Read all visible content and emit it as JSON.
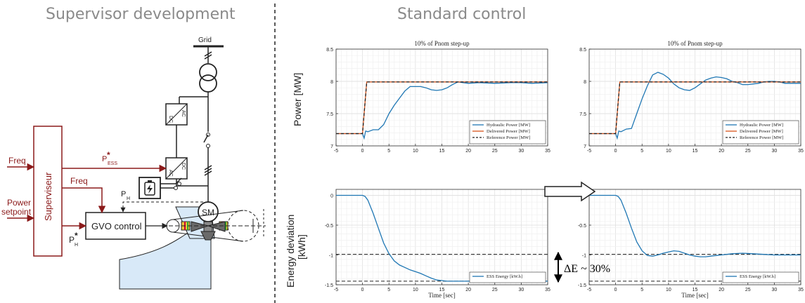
{
  "headings": {
    "left": "Supervisor development",
    "right": "Standard control"
  },
  "diagram": {
    "grid": "Grid",
    "freq": "Freq",
    "freq2": "Freq",
    "power_setpoint_1": "Power",
    "power_setpoint_2": "setpoint",
    "supervisor": "Superviseur",
    "gvo_control": "GVO control",
    "sm": "SM",
    "p_ess": "P",
    "p_ess_sub": "ESS",
    "p_h": "P",
    "p_h_sub": "H",
    "p_h_star": "P",
    "p_h_star_sub": "H",
    "star": "*",
    "ac": "AC",
    "dc": "DC",
    "colors": {
      "signal": "#8b1a1a",
      "water": "#d8e9f8"
    }
  },
  "y_labels": {
    "top": "Power [MW]",
    "bottom_1": "Energy deviation",
    "bottom_2": "[kWh]"
  },
  "annotation": "ΔE ~ 30%",
  "chart_data": [
    {
      "type": "line",
      "title": "10% of Pnom step-up",
      "xlabel": "",
      "ylabel": "",
      "xlim": [
        -5,
        35
      ],
      "ylim": [
        7,
        8.5
      ],
      "xticks": [
        "-5",
        "0",
        "5",
        "10",
        "15",
        "20",
        "25",
        "30",
        "35"
      ],
      "yticks": [
        "7",
        "7.5",
        "8",
        "8.5"
      ],
      "grid": true,
      "legend_position": "bottom-right",
      "series": [
        {
          "name": "Hydraulic Power [MW]",
          "color": "#1f77b4",
          "dash": "solid",
          "x": [
            -5,
            0,
            0.3,
            0.6,
            1,
            2,
            3,
            4,
            5,
            6,
            7,
            8,
            9,
            10,
            11,
            12,
            13,
            14,
            15,
            16,
            17,
            18,
            19,
            20,
            22,
            25,
            28,
            30,
            32,
            35
          ],
          "y": [
            7.19,
            7.19,
            7.12,
            7.23,
            7.22,
            7.25,
            7.25,
            7.33,
            7.5,
            7.63,
            7.74,
            7.85,
            7.92,
            7.92,
            7.92,
            7.9,
            7.87,
            7.86,
            7.87,
            7.9,
            7.95,
            7.99,
            7.98,
            7.97,
            7.98,
            7.97,
            7.98,
            7.98,
            7.97,
            7.98
          ]
        },
        {
          "name": "Delivered Power [MW]",
          "color": "#d95319",
          "dash": "solid",
          "x": [
            -5,
            0,
            0.8,
            35
          ],
          "y": [
            7.19,
            7.19,
            7.99,
            7.99
          ]
        },
        {
          "name": "Reference Power [MW]",
          "color": "#222222",
          "dash": "dashed",
          "x": [
            -5,
            0,
            0.8,
            35
          ],
          "y": [
            7.19,
            7.19,
            7.99,
            7.99
          ]
        }
      ]
    },
    {
      "type": "line",
      "title": "10% of Pnom step-up",
      "xlabel": "",
      "ylabel": "",
      "xlim": [
        -5,
        35
      ],
      "ylim": [
        7,
        8.5
      ],
      "xticks": [
        "-5",
        "0",
        "5",
        "10",
        "15",
        "20",
        "25",
        "30",
        "35"
      ],
      "yticks": [
        "7",
        "7.5",
        "8",
        "8.5"
      ],
      "grid": true,
      "legend_position": "bottom-right",
      "series": [
        {
          "name": "Hydraulic Power [MW]",
          "color": "#1f77b4",
          "dash": "solid",
          "x": [
            -5,
            0,
            0.3,
            0.6,
            1,
            2,
            3,
            4,
            5,
            6,
            7,
            8,
            9,
            10,
            11,
            12,
            13,
            14,
            15,
            16,
            17,
            18,
            19,
            20,
            21,
            22,
            23,
            24,
            25,
            26,
            27,
            28,
            29,
            30,
            31,
            32,
            35
          ],
          "y": [
            7.19,
            7.19,
            7.12,
            7.23,
            7.22,
            7.26,
            7.27,
            7.5,
            7.73,
            7.93,
            8.1,
            8.14,
            8.11,
            8.05,
            7.96,
            7.9,
            7.87,
            7.86,
            7.9,
            7.96,
            8.02,
            8.05,
            8.07,
            8.06,
            8.04,
            8.0,
            7.98,
            7.95,
            7.95,
            7.96,
            7.97,
            7.99,
            8.0,
            8.0,
            7.99,
            7.97,
            7.97
          ]
        },
        {
          "name": "Delivered Power [MW]",
          "color": "#d95319",
          "dash": "solid",
          "x": [
            -5,
            0,
            0.8,
            35
          ],
          "y": [
            7.19,
            7.19,
            7.99,
            7.99
          ]
        },
        {
          "name": "Reference Power [MW]",
          "color": "#222222",
          "dash": "dashed",
          "x": [
            -5,
            0,
            0.8,
            35
          ],
          "y": [
            7.19,
            7.19,
            7.99,
            7.99
          ]
        }
      ]
    },
    {
      "type": "line",
      "title": "",
      "xlabel": "Time [sec]",
      "ylabel": "",
      "xlim": [
        -5,
        35
      ],
      "ylim": [
        -1.5,
        0.1
      ],
      "xticks": [
        "-5",
        "0",
        "5",
        "10",
        "15",
        "20",
        "25",
        "30",
        "35"
      ],
      "yticks": [
        "-1.5",
        "-1",
        "-0.5",
        "0"
      ],
      "grid": true,
      "legend_position": "bottom-right",
      "hlines": [
        -0.99,
        -1.44
      ],
      "series": [
        {
          "name": "ESS Energy [kW.h]",
          "color": "#1f77b4",
          "dash": "solid",
          "x": [
            -5,
            0,
            0.5,
            1,
            2,
            3,
            4,
            5,
            6,
            7,
            8,
            9,
            10,
            11,
            12,
            13,
            14,
            15,
            16,
            17,
            18,
            20,
            25,
            30,
            35
          ],
          "y": [
            0,
            0,
            -0.02,
            -0.08,
            -0.3,
            -0.55,
            -0.8,
            -0.98,
            -1.1,
            -1.17,
            -1.21,
            -1.25,
            -1.28,
            -1.31,
            -1.35,
            -1.39,
            -1.42,
            -1.43,
            -1.44,
            -1.44,
            -1.44,
            -1.44,
            -1.44,
            -1.44,
            -1.44
          ]
        }
      ]
    },
    {
      "type": "line",
      "title": "",
      "xlabel": "Time [sec]",
      "ylabel": "",
      "xlim": [
        -5,
        35
      ],
      "ylim": [
        -1.5,
        0.1
      ],
      "xticks": [
        "-5",
        "0",
        "5",
        "10",
        "15",
        "20",
        "25",
        "30",
        "35"
      ],
      "yticks": [
        "-1.5",
        "-1",
        "-0.5",
        "0"
      ],
      "grid": true,
      "legend_position": "bottom-right",
      "hlines": [
        -0.99,
        -1.44
      ],
      "series": [
        {
          "name": "ESS Energy [kW.h]",
          "color": "#1f77b4",
          "dash": "solid",
          "x": [
            -5,
            0,
            0.5,
            1,
            2,
            3,
            4,
            5,
            6,
            7,
            8,
            9,
            10,
            11,
            12,
            13,
            14,
            15,
            16,
            17,
            18,
            19,
            20,
            22,
            24,
            26,
            28,
            30,
            32,
            35
          ],
          "y": [
            0,
            0,
            -0.02,
            -0.08,
            -0.3,
            -0.55,
            -0.78,
            -0.93,
            -1.01,
            -1.02,
            -1.0,
            -0.97,
            -0.95,
            -0.93,
            -0.94,
            -0.97,
            -1.0,
            -1.02,
            -1.03,
            -1.03,
            -1.02,
            -1.01,
            -1.0,
            -0.98,
            -0.97,
            -0.98,
            -0.99,
            -1.0,
            -1.0,
            -1.0
          ]
        }
      ]
    }
  ]
}
